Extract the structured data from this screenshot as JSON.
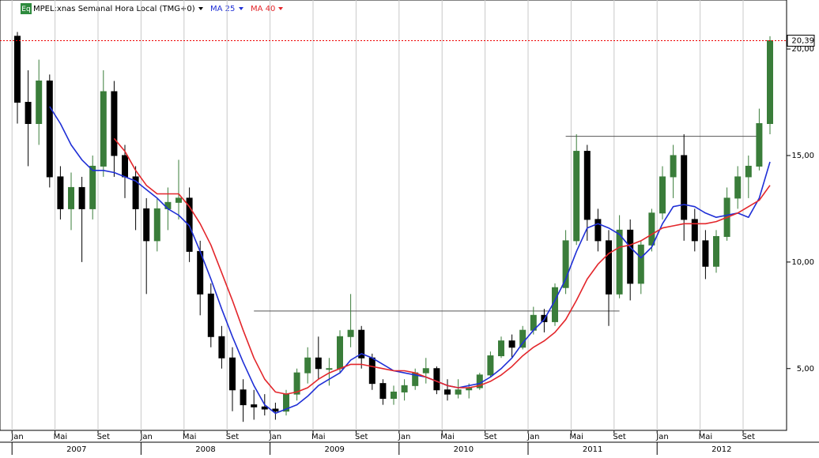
{
  "chart_data": {
    "type": "candlestick",
    "title": "MPEL:xnas Semanal Hora Local (TMG+0)",
    "badge": "Eq",
    "x": [
      "2007-01",
      "2007-02",
      "2007-03",
      "2007-04",
      "2007-05",
      "2007-06",
      "2007-07",
      "2007-08",
      "2007-09",
      "2007-10",
      "2007-11",
      "2007-12",
      "2008-01",
      "2008-02",
      "2008-03",
      "2008-04",
      "2008-05",
      "2008-06",
      "2008-07",
      "2008-08",
      "2008-09",
      "2008-10",
      "2008-11",
      "2008-12",
      "2009-01",
      "2009-02",
      "2009-03",
      "2009-04",
      "2009-05",
      "2009-06",
      "2009-07",
      "2009-08",
      "2009-09",
      "2009-10",
      "2009-11",
      "2009-12",
      "2010-01",
      "2010-02",
      "2010-03",
      "2010-04",
      "2010-05",
      "2010-06",
      "2010-07",
      "2010-08",
      "2010-09",
      "2010-10",
      "2010-11",
      "2010-12",
      "2011-01",
      "2011-02",
      "2011-03",
      "2011-04",
      "2011-05",
      "2011-06",
      "2011-07",
      "2011-08",
      "2011-09",
      "2011-10",
      "2011-11",
      "2011-12",
      "2012-01",
      "2012-02",
      "2012-03",
      "2012-04",
      "2012-05",
      "2012-06",
      "2012-07",
      "2012-08",
      "2012-09",
      "2012-10",
      "2012-11"
    ],
    "open": [
      20.6,
      17.5,
      16.5,
      18.5,
      14,
      12.5,
      13.5,
      12.5,
      14.5,
      18,
      15,
      14,
      12.5,
      11,
      12.5,
      12.8,
      13,
      10.5,
      8.5,
      6.5,
      5.5,
      4,
      3.3,
      3.2,
      3.1,
      3,
      3.8,
      4.8,
      5.5,
      5,
      5,
      6.5,
      6.8,
      5.5,
      4.3,
      3.6,
      3.9,
      4.2,
      4.8,
      5,
      4,
      3.8,
      4,
      4.1,
      4.7,
      5.6,
      6.3,
      6,
      6.8,
      7.5,
      7.2,
      8.8,
      11,
      15.2,
      12,
      11,
      8.5,
      11.5,
      9,
      10.8,
      12.3,
      14,
      15,
      12,
      11,
      9.8,
      11.2,
      13,
      14,
      14.5,
      16.5
    ],
    "high": [
      20.8,
      19,
      19.5,
      18.8,
      14.5,
      14.2,
      14,
      15,
      19,
      18.5,
      15.5,
      14.5,
      13,
      13,
      13.5,
      14.8,
      13.5,
      11,
      9,
      7,
      6,
      4.5,
      4,
      3.8,
      3.4,
      4,
      5,
      6,
      6.5,
      5.5,
      6.8,
      8.5,
      7,
      5.7,
      4.5,
      4.2,
      4.5,
      5,
      5.5,
      5.1,
      4.5,
      4.5,
      4.3,
      4.8,
      5.8,
      6.5,
      6.6,
      7,
      7.9,
      7.8,
      9,
      11.5,
      16,
      15.5,
      12.5,
      11.5,
      12.2,
      12,
      11,
      12.5,
      14.5,
      15.5,
      16,
      12.5,
      11.5,
      11.5,
      13.5,
      14.5,
      15,
      17.2,
      20.6
    ],
    "low": [
      16.5,
      14.5,
      15.5,
      13.5,
      12,
      11.5,
      10,
      12,
      14,
      14,
      13,
      11.5,
      8.5,
      10.5,
      11.5,
      12,
      10,
      7.5,
      6,
      5,
      3,
      2.5,
      2.6,
      2.8,
      2.6,
      2.8,
      3.5,
      4.3,
      4.5,
      4.2,
      4.8,
      6,
      5,
      4,
      3.3,
      3.3,
      3.5,
      4,
      4.3,
      3.8,
      3.5,
      3.6,
      3.6,
      4,
      4.6,
      5.5,
      5.5,
      5.9,
      6.6,
      6.7,
      7,
      8.5,
      10.8,
      11,
      10.5,
      7,
      8.3,
      8.2,
      8.5,
      10.5,
      12,
      13,
      11,
      10.5,
      9.2,
      9.5,
      11,
      12.5,
      13,
      14.3,
      16
    ],
    "close": [
      17.5,
      16.5,
      18.5,
      14,
      12.5,
      13.5,
      12.5,
      14.5,
      18,
      15,
      14,
      12.5,
      11,
      12.5,
      12.8,
      13,
      10.5,
      8.5,
      6.5,
      5.5,
      4,
      3.3,
      3.2,
      3.1,
      3,
      3.8,
      4.8,
      5.5,
      5,
      5,
      6.5,
      6.8,
      5.5,
      4.3,
      3.6,
      3.9,
      4.2,
      4.8,
      5,
      4,
      3.8,
      4,
      4.1,
      4.7,
      5.6,
      6.3,
      6,
      6.8,
      7.5,
      7.2,
      8.8,
      11,
      15.2,
      12,
      11,
      8.5,
      11.5,
      9,
      10.8,
      12.3,
      14,
      15,
      12,
      11,
      9.8,
      11.2,
      13,
      14,
      14.5,
      16.5,
      20.39
    ],
    "up_color": "#3a7d3a",
    "down_color": "#000000",
    "series": [
      {
        "name": "MA 25",
        "color": "#1f2fd6",
        "values": [
          null,
          null,
          null,
          17.3,
          16.5,
          15.5,
          14.8,
          14.3,
          14.3,
          14.2,
          14.0,
          13.8,
          13.4,
          13.0,
          12.5,
          12.2,
          11.7,
          10.5,
          9.2,
          7.8,
          6.5,
          5.3,
          4.2,
          3.3,
          2.9,
          3.1,
          3.3,
          3.7,
          4.2,
          4.5,
          4.8,
          5.4,
          5.7,
          5.5,
          5.2,
          4.9,
          4.8,
          4.7,
          4.6,
          4.4,
          4.2,
          4.1,
          4.2,
          4.3,
          4.6,
          5.0,
          5.5,
          6.2,
          6.8,
          7.3,
          8.2,
          9.2,
          10.5,
          11.6,
          11.8,
          11.6,
          11.3,
          10.7,
          10.2,
          10.7,
          11.8,
          12.6,
          12.7,
          12.6,
          12.3,
          12.1,
          12.2,
          12.3,
          12.1,
          13.0,
          14.7
        ]
      },
      {
        "name": "MA 40",
        "color": "#e3262b",
        "values": [
          null,
          null,
          null,
          null,
          null,
          null,
          null,
          null,
          null,
          15.8,
          15.2,
          14.3,
          13.6,
          13.2,
          13.2,
          13.2,
          12.6,
          11.8,
          10.8,
          9.5,
          8.2,
          6.8,
          5.5,
          4.5,
          3.9,
          3.8,
          3.9,
          4.1,
          4.5,
          4.8,
          5.0,
          5.2,
          5.2,
          5.1,
          5.0,
          4.9,
          4.9,
          4.8,
          4.6,
          4.4,
          4.2,
          4.1,
          4.1,
          4.2,
          4.4,
          4.7,
          5.1,
          5.6,
          6.0,
          6.3,
          6.7,
          7.3,
          8.2,
          9.2,
          9.9,
          10.4,
          10.7,
          10.8,
          11.0,
          11.3,
          11.6,
          11.7,
          11.8,
          11.8,
          11.8,
          11.9,
          12.1,
          12.3,
          12.6,
          12.9,
          13.6
        ]
      }
    ],
    "levels": [
      {
        "value": 7.7,
        "from": "2008-11",
        "to": "2011-09"
      },
      {
        "value": 15.9,
        "from": "2011-04",
        "to": "2012-10"
      }
    ],
    "last_price": {
      "value": 20.39,
      "label": "20,39"
    },
    "ylim": [
      2.1,
      22.3
    ],
    "yticks": [
      {
        "value": 5,
        "label": "5,00"
      },
      {
        "value": 10,
        "label": "10,00"
      },
      {
        "value": 15,
        "label": "15,00"
      },
      {
        "value": 20,
        "label": "20,00"
      }
    ],
    "xticks": [
      {
        "value": "2007-01",
        "label": "Jan"
      },
      {
        "value": "2007-05",
        "label": "Mai"
      },
      {
        "value": "2007-09",
        "label": "Set"
      },
      {
        "value": "2008-01",
        "label": "Jan"
      },
      {
        "value": "2008-05",
        "label": "Mai"
      },
      {
        "value": "2008-09",
        "label": "Set"
      },
      {
        "value": "2009-01",
        "label": "Jan"
      },
      {
        "value": "2009-05",
        "label": "Mai"
      },
      {
        "value": "2009-09",
        "label": "Set"
      },
      {
        "value": "2010-01",
        "label": "Jan"
      },
      {
        "value": "2010-05",
        "label": "Mai"
      },
      {
        "value": "2010-09",
        "label": "Set"
      },
      {
        "value": "2011-01",
        "label": "Jan"
      },
      {
        "value": "2011-05",
        "label": "Mai"
      },
      {
        "value": "2011-09",
        "label": "Set"
      },
      {
        "value": "2012-01",
        "label": "Jan"
      },
      {
        "value": "2012-05",
        "label": "Mai"
      },
      {
        "value": "2012-09",
        "label": "Set"
      }
    ],
    "years": [
      "2007",
      "2008",
      "2009",
      "2010",
      "2011",
      "2012"
    ],
    "grid": true
  }
}
